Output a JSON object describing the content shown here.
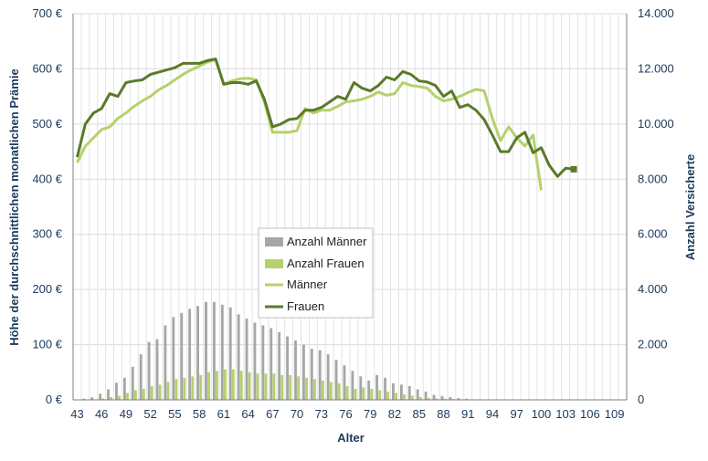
{
  "chart_data": {
    "type": "bar+line",
    "title": "",
    "xlabel": "Alter",
    "ylabel_left": "Höhe der durchschnittlichen monatlichen Prämie",
    "ylabel_right": "Anzahl Versicherte",
    "ylim_left": [
      0,
      700
    ],
    "ylim_right": [
      0,
      14000
    ],
    "y_left_ticks": [
      "0 €",
      "100 €",
      "200 €",
      "300 €",
      "400 €",
      "500 €",
      "600 €",
      "700 €"
    ],
    "y_right_ticks": [
      "0",
      "2.000",
      "4.000",
      "6.000",
      "8.000",
      "10.000",
      "12.000",
      "14.000"
    ],
    "x_ticks": [
      "43",
      "46",
      "49",
      "52",
      "55",
      "58",
      "61",
      "64",
      "67",
      "70",
      "73",
      "76",
      "79",
      "82",
      "85",
      "88",
      "91",
      "94",
      "97",
      "100",
      "103",
      "106",
      "109"
    ],
    "grid": true,
    "legend_position": "center-bottom",
    "x": [
      43,
      44,
      45,
      46,
      47,
      48,
      49,
      50,
      51,
      52,
      53,
      54,
      55,
      56,
      57,
      58,
      59,
      60,
      61,
      62,
      63,
      64,
      65,
      66,
      67,
      68,
      69,
      70,
      71,
      72,
      73,
      74,
      75,
      76,
      77,
      78,
      79,
      80,
      81,
      82,
      83,
      84,
      85,
      86,
      87,
      88,
      89,
      90,
      91,
      92,
      93,
      94,
      95,
      96,
      97,
      98,
      99,
      100,
      101,
      102,
      103,
      104,
      105,
      106,
      107,
      108,
      109,
      110
    ],
    "series": [
      {
        "name": "Anzahl Männer",
        "kind": "bar",
        "axis": "right",
        "color": "#a6a6a6",
        "values": [
          10,
          40,
          90,
          220,
          380,
          620,
          800,
          1200,
          1650,
          2100,
          2200,
          2700,
          3000,
          3150,
          3300,
          3400,
          3550,
          3550,
          3450,
          3350,
          3100,
          2950,
          2800,
          2700,
          2600,
          2450,
          2300,
          2150,
          2000,
          1850,
          1800,
          1650,
          1450,
          1250,
          1050,
          850,
          700,
          900,
          800,
          600,
          550,
          500,
          380,
          300,
          180,
          140,
          100,
          60,
          40,
          20,
          10,
          5,
          3,
          2,
          0,
          0,
          0,
          0,
          0,
          0,
          0,
          0,
          0,
          0,
          0,
          0,
          0,
          0
        ]
      },
      {
        "name": "Anzahl Frauen",
        "kind": "bar",
        "axis": "right",
        "color": "#b5d16c",
        "values": [
          0,
          0,
          20,
          50,
          100,
          150,
          250,
          350,
          400,
          500,
          550,
          650,
          750,
          800,
          850,
          900,
          1000,
          1050,
          1100,
          1100,
          1050,
          1000,
          950,
          950,
          950,
          900,
          900,
          850,
          800,
          750,
          700,
          650,
          600,
          500,
          400,
          450,
          400,
          350,
          300,
          250,
          200,
          150,
          100,
          70,
          50,
          40,
          30,
          20,
          10,
          5,
          3,
          2,
          1,
          0,
          0,
          0,
          0,
          0,
          0,
          0,
          0,
          0,
          0,
          0,
          0,
          0,
          0,
          0
        ]
      },
      {
        "name": "Männer",
        "kind": "line",
        "axis": "left",
        "color": "#b5d16c",
        "values": [
          430,
          460,
          475,
          490,
          495,
          510,
          520,
          532,
          542,
          550,
          562,
          570,
          580,
          590,
          598,
          605,
          612,
          617,
          572,
          578,
          582,
          583,
          580,
          540,
          485,
          485,
          485,
          488,
          528,
          520,
          525,
          525,
          532,
          540,
          542,
          545,
          550,
          558,
          552,
          555,
          575,
          570,
          568,
          565,
          550,
          542,
          545,
          550,
          557,
          563,
          560,
          510,
          470,
          495,
          475,
          460,
          480,
          380,
          null,
          null,
          null,
          null,
          null,
          null,
          null,
          null,
          null,
          null
        ]
      },
      {
        "name": "Frauen",
        "kind": "line",
        "axis": "left",
        "color": "#5a7a2a",
        "values": [
          440,
          500,
          520,
          528,
          555,
          550,
          575,
          578,
          580,
          590,
          594,
          598,
          602,
          610,
          610,
          610,
          615,
          618,
          572,
          575,
          575,
          572,
          578,
          545,
          495,
          500,
          508,
          510,
          525,
          525,
          530,
          540,
          550,
          545,
          575,
          565,
          560,
          570,
          585,
          580,
          595,
          590,
          578,
          576,
          570,
          550,
          560,
          530,
          535,
          525,
          508,
          480,
          450,
          450,
          475,
          485,
          448,
          457,
          425,
          405,
          420,
          418,
          null,
          null,
          null,
          null,
          null,
          null
        ]
      }
    ]
  }
}
